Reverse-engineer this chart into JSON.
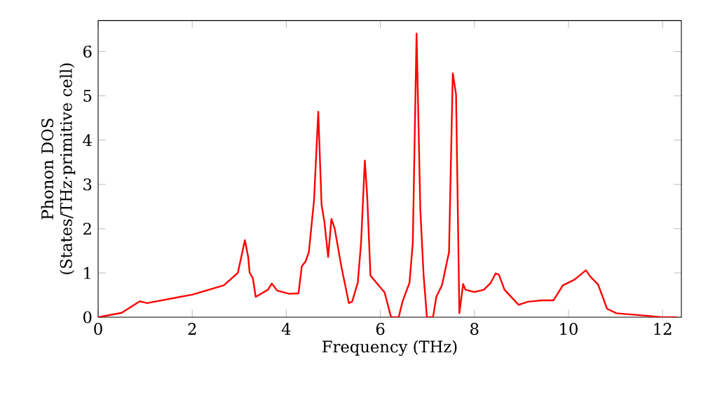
{
  "chart_data": {
    "type": "line",
    "xlabel": "Frequency (THz)",
    "ylabel": "Phonon DOS (States/THz·primitive cell)",
    "xlim": [
      0,
      12.4
    ],
    "ylim": [
      0,
      6.7
    ],
    "xticks": [
      0,
      2,
      4,
      6,
      8,
      10,
      12
    ],
    "yticks": [
      0,
      1,
      2,
      3,
      4,
      5,
      6
    ],
    "grid": false,
    "marker": "none",
    "line_style": "solid",
    "series": [
      {
        "color": "#ff0000",
        "x": [
          0,
          0.5,
          0.84,
          0.89,
          1.04,
          2.0,
          2.67,
          2.97,
          3.12,
          3.19,
          3.22,
          3.29,
          3.35,
          3.61,
          3.69,
          3.81,
          4.06,
          4.26,
          4.33,
          4.41,
          4.48,
          4.59,
          4.68,
          4.75,
          4.81,
          4.89,
          4.96,
          5.03,
          5.17,
          5.33,
          5.4,
          5.52,
          5.59,
          5.67,
          5.72,
          5.79,
          5.94,
          6.09,
          6.22,
          6.25,
          6.39,
          6.47,
          6.62,
          6.69,
          6.77,
          6.85,
          6.92,
          6.99,
          7.12,
          7.19,
          7.31,
          7.46,
          7.54,
          7.61,
          7.68,
          7.76,
          7.81,
          8.0,
          8.2,
          8.35,
          8.45,
          8.52,
          8.64,
          8.94,
          9.14,
          9.43,
          9.68,
          9.88,
          10.13,
          10.37,
          10.47,
          10.63,
          10.82,
          11.02,
          11.7,
          11.97,
          12.3
        ],
        "values": [
          0,
          0.1,
          0.33,
          0.36,
          0.32,
          0.51,
          0.72,
          1.0,
          1.74,
          1.36,
          1.01,
          0.88,
          0.46,
          0.62,
          0.76,
          0.6,
          0.53,
          0.54,
          1.15,
          1.26,
          1.47,
          2.64,
          4.64,
          2.54,
          2.16,
          1.36,
          2.22,
          2.0,
          1.15,
          0.32,
          0.35,
          0.78,
          1.68,
          3.54,
          2.74,
          0.94,
          0.75,
          0.56,
          0.03,
          0,
          0,
          0.35,
          0.78,
          1.68,
          6.41,
          2.43,
          0.94,
          0,
          0,
          0.46,
          0.72,
          1.47,
          5.51,
          5.03,
          0.09,
          0.75,
          0.62,
          0.57,
          0.62,
          0.78,
          0.99,
          0.96,
          0.62,
          0.28,
          0.35,
          0.38,
          0.38,
          0.72,
          0.85,
          1.06,
          0.91,
          0.74,
          0.19,
          0.09,
          0.03,
          0,
          0
        ]
      }
    ]
  }
}
